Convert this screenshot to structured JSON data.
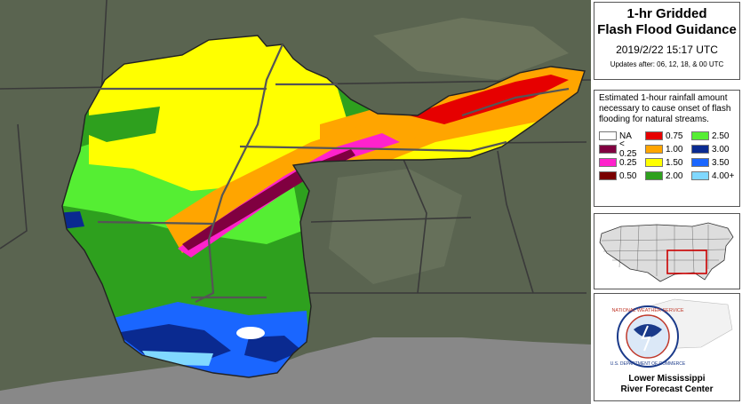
{
  "title": {
    "line1": "1-hr Gridded",
    "line2": "Flash Flood Guidance"
  },
  "datetime": "2019/2/22  15:17 UTC",
  "updates": "Updates after: 06, 12, 18, & 00 UTC",
  "legend": {
    "description": "Estimated 1-hour rainfall amount necessary to cause onset of flash flooding for natural streams.",
    "items": [
      {
        "label": "NA",
        "color": "#ffffff"
      },
      {
        "label": "0.75",
        "color": "#e60000"
      },
      {
        "label": "2.50",
        "color": "#55ee33"
      },
      {
        "label": "< 0.25",
        "color": "#800040"
      },
      {
        "label": "1.00",
        "color": "#ffa500"
      },
      {
        "label": "3.00",
        "color": "#0a2a90"
      },
      {
        "label": "0.25",
        "color": "#ff22cc"
      },
      {
        "label": "1.50",
        "color": "#ffff00"
      },
      {
        "label": "3.50",
        "color": "#1a66ff"
      },
      {
        "label": "0.50",
        "color": "#7a0000"
      },
      {
        "label": "2.00",
        "color": "#2ea01e"
      },
      {
        "label": "4.00+",
        "color": "#80d8ff"
      }
    ]
  },
  "inset": {
    "name": "us-locator-map",
    "highlight_color": "#cc0000"
  },
  "logo": {
    "ring_text_top": "NATIONAL WEATHER SERVICE",
    "ring_text_bottom": "U.S. DEPARTMENT OF COMMERCE",
    "org_line1": "Lower Mississippi",
    "org_line2": "River Forecast Center"
  },
  "colors": {
    "terrain": "#5a6450",
    "water": "#888888",
    "borders": "#3a3a3a"
  }
}
